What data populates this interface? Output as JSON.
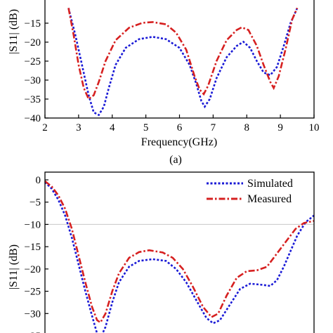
{
  "chart_data": [
    {
      "type": "line",
      "panel_label": "(a)",
      "xlabel": "Frequency(GHz)",
      "ylabel": "|S11| (dB)",
      "xlim": [
        2,
        10
      ],
      "ylim": [
        -40,
        -10
      ],
      "x_ticks": [
        2,
        3,
        4,
        5,
        6,
        7,
        8,
        9,
        10
      ],
      "y_ticks": [
        -40,
        -35,
        -30,
        -25,
        -20,
        -15
      ],
      "grid": false,
      "series": [
        {
          "name": "",
          "color": "#1a1ad6",
          "dash": "dotted",
          "points": [
            [
              2.7,
              -11
            ],
            [
              2.9,
              -18
            ],
            [
              3.1,
              -26
            ],
            [
              3.3,
              -34
            ],
            [
              3.45,
              -38.5
            ],
            [
              3.6,
              -39.2
            ],
            [
              3.75,
              -37
            ],
            [
              3.9,
              -32
            ],
            [
              4.1,
              -26
            ],
            [
              4.4,
              -21.5
            ],
            [
              4.8,
              -19.2
            ],
            [
              5.2,
              -18.6
            ],
            [
              5.6,
              -19.2
            ],
            [
              6.0,
              -21.5
            ],
            [
              6.3,
              -26
            ],
            [
              6.5,
              -31
            ],
            [
              6.65,
              -35.5
            ],
            [
              6.75,
              -37
            ],
            [
              6.9,
              -35
            ],
            [
              7.1,
              -29.5
            ],
            [
              7.4,
              -24
            ],
            [
              7.7,
              -21
            ],
            [
              7.9,
              -19.9
            ],
            [
              8.1,
              -21.5
            ],
            [
              8.3,
              -25
            ],
            [
              8.5,
              -28
            ],
            [
              8.7,
              -28.7
            ],
            [
              8.9,
              -26.5
            ],
            [
              9.1,
              -21
            ],
            [
              9.3,
              -15
            ],
            [
              9.5,
              -11
            ]
          ]
        },
        {
          "name": "",
          "color": "#d62020",
          "dash": "dashdot",
          "points": [
            [
              2.7,
              -11
            ],
            [
              2.85,
              -18
            ],
            [
              3.0,
              -26
            ],
            [
              3.15,
              -32
            ],
            [
              3.3,
              -35
            ],
            [
              3.45,
              -34
            ],
            [
              3.6,
              -30.5
            ],
            [
              3.8,
              -25
            ],
            [
              4.1,
              -19.5
            ],
            [
              4.5,
              -16.2
            ],
            [
              4.9,
              -14.9
            ],
            [
              5.2,
              -14.7
            ],
            [
              5.6,
              -15.3
            ],
            [
              5.9,
              -17.5
            ],
            [
              6.2,
              -22
            ],
            [
              6.45,
              -29
            ],
            [
              6.6,
              -32.5
            ],
            [
              6.72,
              -33.7
            ],
            [
              6.85,
              -31.5
            ],
            [
              7.1,
              -25
            ],
            [
              7.4,
              -19.5
            ],
            [
              7.7,
              -16.8
            ],
            [
              7.85,
              -16.1
            ],
            [
              8.05,
              -16.8
            ],
            [
              8.3,
              -21
            ],
            [
              8.5,
              -26
            ],
            [
              8.7,
              -30.5
            ],
            [
              8.8,
              -32.1
            ],
            [
              8.95,
              -29
            ],
            [
              9.15,
              -22
            ],
            [
              9.35,
              -14
            ],
            [
              9.5,
              -11
            ]
          ]
        }
      ]
    },
    {
      "type": "line",
      "panel_label": "",
      "xlabel": "",
      "ylabel": "|S11| (dB)",
      "xlim": [
        2,
        10
      ],
      "ylim": [
        -35,
        0
      ],
      "y_ticks": [
        -35,
        -30,
        -25,
        -20,
        -15,
        -10,
        -5,
        0
      ],
      "reference_line": -10,
      "grid": false,
      "legend_position": "top-right",
      "series": [
        {
          "name": "Simulated",
          "color": "#1a1ad6",
          "dash": "dotted",
          "points": [
            [
              2.0,
              -0.5
            ],
            [
              2.2,
              -2
            ],
            [
              2.4,
              -4.5
            ],
            [
              2.6,
              -8
            ],
            [
              2.8,
              -13
            ],
            [
              3.0,
              -19
            ],
            [
              3.2,
              -25
            ],
            [
              3.4,
              -30.5
            ],
            [
              3.55,
              -34.5
            ],
            [
              3.65,
              -35.5
            ],
            [
              3.8,
              -33
            ],
            [
              4.0,
              -27.5
            ],
            [
              4.2,
              -23
            ],
            [
              4.5,
              -19.5
            ],
            [
              4.8,
              -18.2
            ],
            [
              5.2,
              -17.8
            ],
            [
              5.6,
              -18.2
            ],
            [
              5.9,
              -20
            ],
            [
              6.2,
              -23
            ],
            [
              6.5,
              -27
            ],
            [
              6.8,
              -31
            ],
            [
              7.0,
              -32.2
            ],
            [
              7.2,
              -31.5
            ],
            [
              7.5,
              -28
            ],
            [
              7.8,
              -24.5
            ],
            [
              8.1,
              -23.3
            ],
            [
              8.4,
              -23.5
            ],
            [
              8.7,
              -23.8
            ],
            [
              8.9,
              -22.5
            ],
            [
              9.1,
              -19.5
            ],
            [
              9.3,
              -16
            ],
            [
              9.5,
              -12.5
            ],
            [
              9.75,
              -9.5
            ],
            [
              10.0,
              -8
            ]
          ]
        },
        {
          "name": "Measured",
          "color": "#d62020",
          "dash": "dashdot",
          "points": [
            [
              2.0,
              -0.3
            ],
            [
              2.2,
              -1.5
            ],
            [
              2.4,
              -3.5
            ],
            [
              2.6,
              -6.5
            ],
            [
              2.8,
              -11
            ],
            [
              3.0,
              -17
            ],
            [
              3.2,
              -23
            ],
            [
              3.4,
              -28.5
            ],
            [
              3.55,
              -31.5
            ],
            [
              3.65,
              -32
            ],
            [
              3.8,
              -30
            ],
            [
              4.0,
              -25
            ],
            [
              4.2,
              -21
            ],
            [
              4.5,
              -17.5
            ],
            [
              4.8,
              -16.2
            ],
            [
              5.1,
              -15.8
            ],
            [
              5.5,
              -16.3
            ],
            [
              5.8,
              -17.5
            ],
            [
              6.1,
              -20
            ],
            [
              6.4,
              -24
            ],
            [
              6.7,
              -28.5
            ],
            [
              6.95,
              -30.8
            ],
            [
              7.15,
              -30
            ],
            [
              7.4,
              -26
            ],
            [
              7.7,
              -22
            ],
            [
              8.0,
              -20.5
            ],
            [
              8.3,
              -20.3
            ],
            [
              8.6,
              -19.5
            ],
            [
              8.9,
              -16.5
            ],
            [
              9.2,
              -13.5
            ],
            [
              9.45,
              -11
            ],
            [
              9.7,
              -9.7
            ],
            [
              10.0,
              -9.2
            ]
          ]
        }
      ]
    }
  ]
}
